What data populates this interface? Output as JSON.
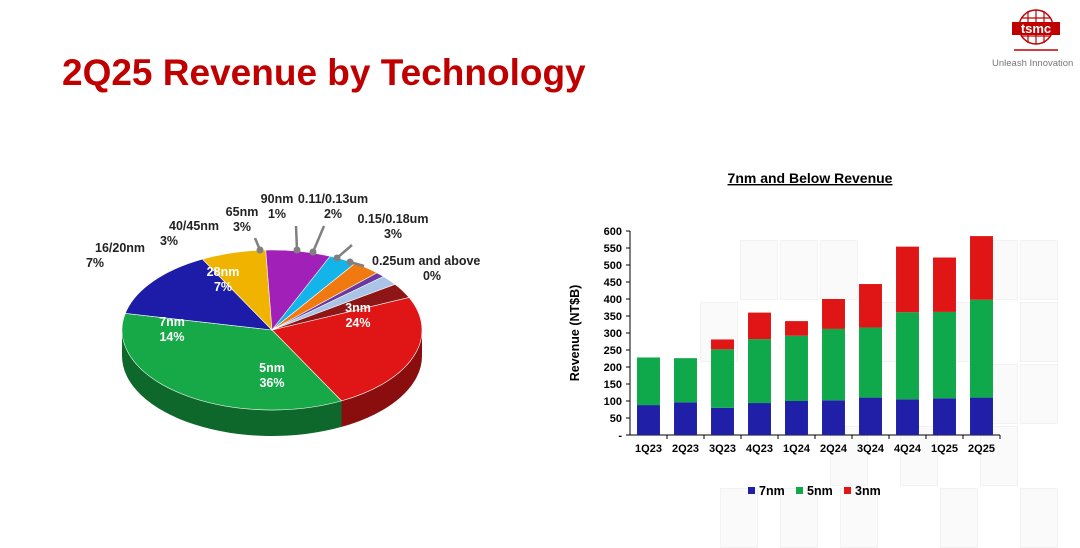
{
  "header": {
    "title": "2Q25 Revenue by Technology",
    "logo_text": "tsmc",
    "tagline": "Unleash Innovation"
  },
  "colors": {
    "title": "#c00000",
    "c7nm": "#1f1fa8",
    "c5nm": "#0fa84a",
    "c3nm": "#e01616"
  },
  "chart_data": [
    {
      "type": "pie",
      "title": "",
      "slices": [
        {
          "label": "3nm",
          "pct": "24%",
          "value": 24,
          "color": "#e01616"
        },
        {
          "label": "5nm",
          "pct": "36%",
          "value": 36,
          "color": "#17a847"
        },
        {
          "label": "7nm",
          "pct": "14%",
          "value": 14,
          "color": "#1c1ca8"
        },
        {
          "label": "16/20nm",
          "pct": "7%",
          "value": 7,
          "color": "#f0b400"
        },
        {
          "label": "28nm",
          "pct": "7%",
          "value": 7,
          "color": "#a020b8"
        },
        {
          "label": "40/45nm",
          "pct": "3%",
          "value": 3,
          "color": "#12b4ea"
        },
        {
          "label": "65nm",
          "pct": "3%",
          "value": 3,
          "color": "#f07a10"
        },
        {
          "label": "90nm",
          "pct": "1%",
          "value": 1,
          "color": "#6a3aa0"
        },
        {
          "label": "0.11/0.13um",
          "pct": "2%",
          "value": 2,
          "color": "#a9c4e6"
        },
        {
          "label": "0.15/0.18um",
          "pct": "3%",
          "value": 3,
          "color": "#8e1616"
        },
        {
          "label": "0.25um and above",
          "pct": "0%",
          "value": 0,
          "color": "#c8c8c8"
        }
      ]
    },
    {
      "type": "bar",
      "stacked": true,
      "title": "7nm and Below Revenue",
      "xlabel": "",
      "ylabel": "Revenue (NT$B)",
      "ylim": [
        0,
        600
      ],
      "yticks": [
        "-",
        "50",
        "100",
        "150",
        "200",
        "250",
        "300",
        "350",
        "400",
        "450",
        "500",
        "550",
        "600"
      ],
      "categories": [
        "1Q23",
        "2Q23",
        "3Q23",
        "4Q23",
        "1Q24",
        "2Q24",
        "3Q24",
        "4Q24",
        "1Q25",
        "2Q25"
      ],
      "series": [
        {
          "name": "7nm",
          "color": "#1f1fa8",
          "values": [
            88,
            96,
            80,
            94,
            100,
            102,
            110,
            105,
            108,
            110
          ]
        },
        {
          "name": "5nm",
          "color": "#0fa84a",
          "values": [
            140,
            130,
            172,
            188,
            192,
            210,
            206,
            256,
            254,
            288
          ]
        },
        {
          "name": "3nm",
          "color": "#e01616",
          "values": [
            0,
            0,
            29,
            78,
            43,
            88,
            128,
            193,
            160,
            187
          ]
        }
      ],
      "legend": "bottom"
    }
  ]
}
